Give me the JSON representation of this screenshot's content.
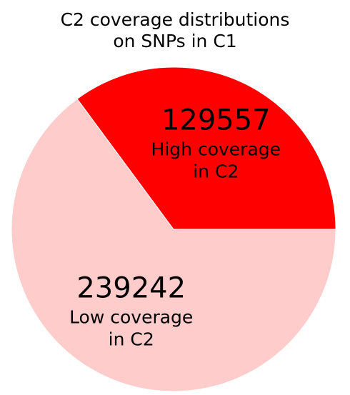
{
  "chart_data": {
    "type": "pie",
    "title": "C2 coverage distributions\non SNPs in C1",
    "slices": [
      {
        "value": 239242,
        "value_label": "239242",
        "label": "Low coverage\nin C2",
        "color": "#ffcccc"
      },
      {
        "value": 129557,
        "value_label": "129557",
        "label": "High coverage\nin C2",
        "color": "#ff0000"
      }
    ],
    "start_angle_deg": 0,
    "direction": "clockwise"
  }
}
